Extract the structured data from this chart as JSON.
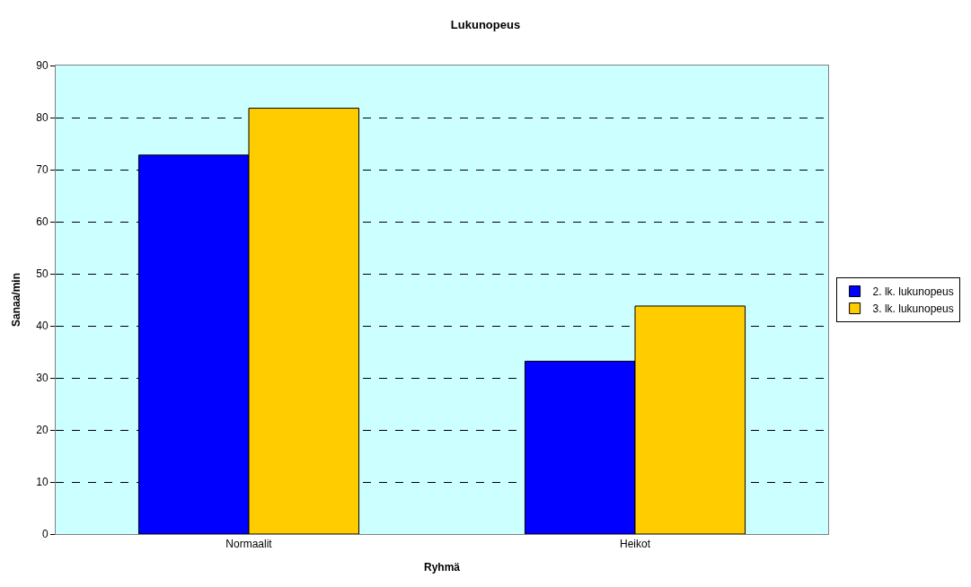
{
  "chart_data": {
    "type": "bar",
    "title": "Lukunopeus",
    "xlabel": "Ryhmä",
    "ylabel": "Sanaa/min",
    "categories": [
      "Normaalit",
      "Heikot"
    ],
    "series": [
      {
        "name": "2. lk. lukunopeus",
        "color": "#0000ff",
        "values": [
          72.8,
          33.2
        ]
      },
      {
        "name": "3. lk. lukunopeus",
        "color": "#ffcc00",
        "values": [
          81.8,
          43.8
        ]
      }
    ],
    "ylim": [
      0,
      90
    ],
    "yticks": [
      0,
      10,
      20,
      30,
      40,
      50,
      60,
      70,
      80,
      90
    ],
    "grid": "y",
    "legend": "right"
  }
}
